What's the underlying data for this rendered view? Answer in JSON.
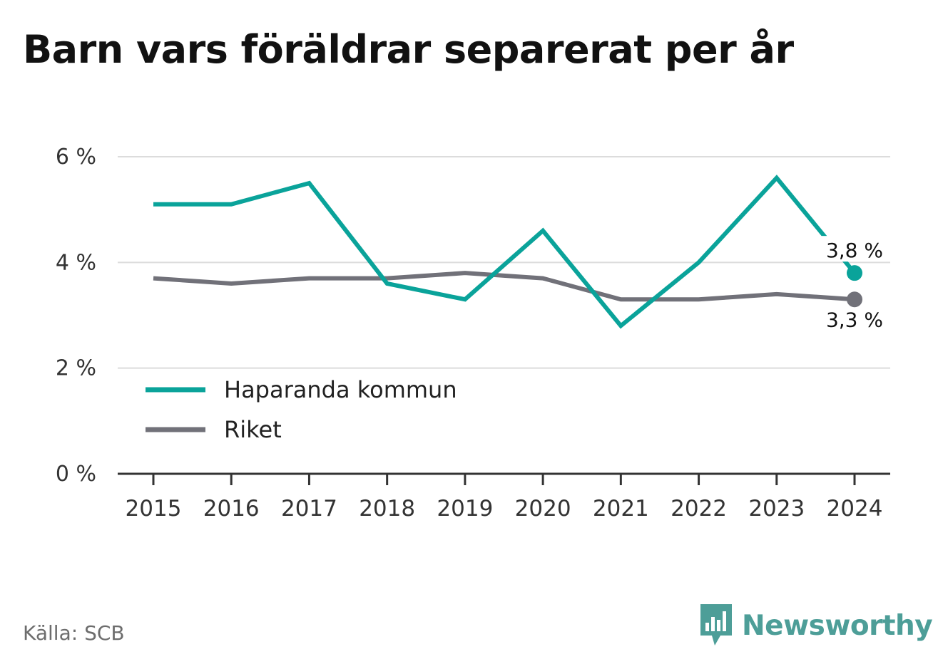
{
  "title": "Barn vars föräldrar separerat per år",
  "source": "Källa: SCB",
  "brand": {
    "name": "Newsworthy",
    "icon": "bar-chart-pin-icon",
    "color": "#4d9e98"
  },
  "chart_data": {
    "type": "line",
    "title": "Barn vars föräldrar separerat per år",
    "xlabel": "",
    "ylabel": "",
    "x": [
      "2015",
      "2016",
      "2017",
      "2018",
      "2019",
      "2020",
      "2021",
      "2022",
      "2023",
      "2024"
    ],
    "series": [
      {
        "name": "Haparanda kommun",
        "color": "#0aa39a",
        "values": [
          5.1,
          5.1,
          5.5,
          3.6,
          3.3,
          4.6,
          2.8,
          4.0,
          5.6,
          3.8
        ]
      },
      {
        "name": "Riket",
        "color": "#717179",
        "values": [
          3.7,
          3.6,
          3.7,
          3.7,
          3.8,
          3.7,
          3.3,
          3.3,
          3.4,
          3.3
        ]
      }
    ],
    "ylim": [
      0,
      6
    ],
    "yticks": [
      0,
      2,
      4,
      6
    ],
    "ytick_labels": [
      "0 %",
      "2 %",
      "4 %",
      "6 %"
    ],
    "end_labels": [
      "3,8 %",
      "3,3 %"
    ],
    "grid": true,
    "legend": "bottom-left"
  }
}
